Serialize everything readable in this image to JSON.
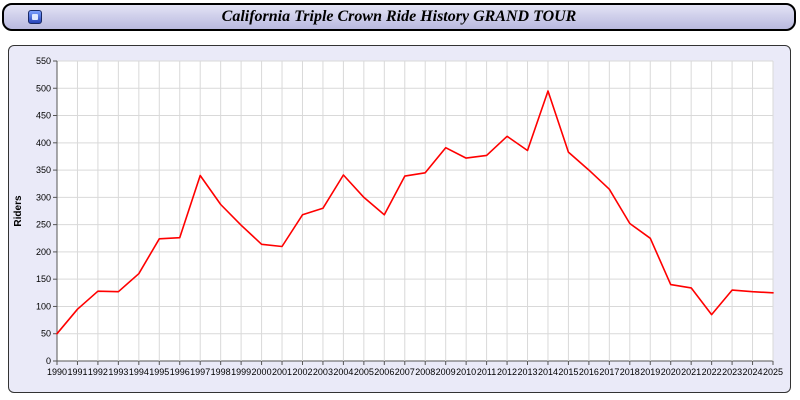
{
  "window": {
    "title": "California Triple Crown Ride History GRAND TOUR",
    "icon": "app-icon"
  },
  "chart_data": {
    "type": "line",
    "title": "California Triple Crown Ride History GRAND TOUR",
    "xlabel": "",
    "ylabel": "Riders",
    "ylim": [
      0,
      550
    ],
    "ytick_step": 50,
    "grid": true,
    "legend": "none",
    "line_color": "#ff0000",
    "x": [
      1990,
      1991,
      1992,
      1993,
      1994,
      1995,
      1996,
      1997,
      1998,
      1999,
      2000,
      2001,
      2002,
      2003,
      2004,
      2005,
      2006,
      2007,
      2008,
      2009,
      2010,
      2011,
      2012,
      2013,
      2014,
      2015,
      2016,
      2017,
      2018,
      2019,
      2020,
      2021,
      2022,
      2023,
      2024,
      2025
    ],
    "values": [
      50,
      95,
      128,
      127,
      160,
      224,
      226,
      340,
      287,
      249,
      214,
      210,
      268,
      280,
      341,
      300,
      268,
      339,
      345,
      391,
      372,
      377,
      412,
      386,
      495,
      383,
      350,
      315,
      252,
      225,
      140,
      134,
      85,
      130,
      127,
      125
    ]
  },
  "colors": {
    "line": "#ff0000",
    "panel_background": "#eaeaf8",
    "titlebar_background": "#c8c8ea",
    "gridline": "#d9d9d9",
    "axis": "#555555"
  }
}
